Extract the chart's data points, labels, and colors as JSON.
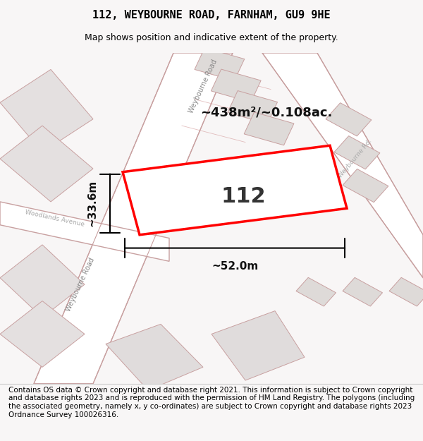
{
  "title": "112, WEYBOURNE ROAD, FARNHAM, GU9 9HE",
  "subtitle": "Map shows position and indicative extent of the property.",
  "footer": "Contains OS data © Crown copyright and database right 2021. This information is subject to Crown copyright and database rights 2023 and is reproduced with the permission of HM Land Registry. The polygons (including the associated geometry, namely x, y co-ordinates) are subject to Crown copyright and database rights 2023 Ordnance Survey 100026316.",
  "area_label": "~438m²/~0.108ac.",
  "width_label": "~52.0m",
  "height_label": "~33.6m",
  "number_label": "112",
  "bg_color": "#f5f0f0",
  "map_bg": "#f0eeee",
  "road_color": "#ffffff",
  "road_stroke": "#d4a0a0",
  "plot_color": "#ff0000",
  "plot_fill": "#ffffff",
  "block_fill": "#e8e4e4",
  "title_fontsize": 11,
  "subtitle_fontsize": 9,
  "footer_fontsize": 7.5,
  "label_fontsize": 13,
  "number_fontsize": 22,
  "dim_fontsize": 11
}
